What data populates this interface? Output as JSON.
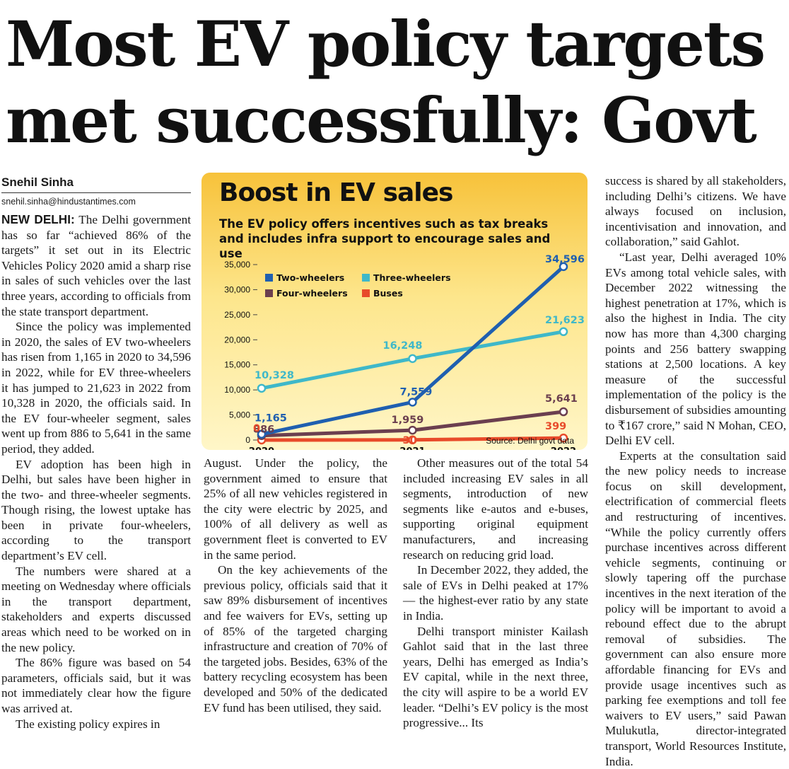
{
  "headline": "Most EV policy targets met successfully: Govt",
  "byline": "Snehil Sinha",
  "email": "snehil.sinha@hindustantimes.com",
  "dateline": "NEW DELHI:",
  "columns": {
    "col1": [
      "The Delhi government has so far “achieved 86% of the targets” it set out in its Electric Vehicles Policy 2020 amid a sharp rise in sales of such vehicles over the last three years, according to officials from the state transport department.",
      "Since the policy was implemented in 2020, the sales of EV two-wheelers has risen from 1,165 in 2020 to 34,596 in 2022, while for EV three-wheelers it has jumped to 21,623 in 2022 from 10,328 in 2020, the officials said. In the EV four-wheeler segment, sales went up from 886 to 5,641 in the same period, they added.",
      "EV adoption has been high in Delhi, but sales have been higher in the two- and three-wheeler segments. Though rising, the lowest uptake has been in private four-wheelers, according to the transport department’s EV cell.",
      "The numbers were shared at a meeting on Wednesday where officials in the transport department, stakeholders and experts discussed areas which need to be worked on in the new policy.",
      "The 86% figure was based on 54 parameters, officials said, but it was not immediately clear how the figure was arrived at.",
      "The existing policy expires in"
    ],
    "col2": [
      "August. Under the policy, the government aimed to ensure that 25% of all new vehicles registered in the city were electric by 2025, and 100% of all delivery as well as government fleet is converted to EV in the same period.",
      "On the key achievements of the previous policy, officials said that it saw 89% disbursement of incentives and fee waivers for EVs, setting up of 85% of the targeted charging infrastructure and creation of 70% of the targeted jobs. Besides, 63% of the battery recycling ecosystem has been developed and 50% of the dedicated EV fund has been utilised, they said."
    ],
    "col3": [
      "Other measures out of the total 54 included increasing EV sales in all segments, introduction of new segments like e-autos and e-buses, supporting original equipment manufacturers, and increasing research on reducing grid load.",
      "In December 2022, they added, the sale of EVs in Delhi peaked at 17% — the highest-ever ratio by any state in India.",
      "Delhi transport minister Kailash Gahlot said that in the last three years, Delhi has emerged as India’s EV capital, while in the next three, the city will aspire to be a world EV leader. “Delhi’s EV policy is the most progressive... Its"
    ],
    "col4": [
      "success is shared by all stakeholders, including Delhi’s citizens. We have always focused on inclusion, incentivisation and innovation, and collaboration,” said Gahlot.",
      "“Last year, Delhi averaged 10% EVs among total vehicle sales, with December 2022 witnessing the highest penetration at 17%, which is also the highest in India. The city now has more than 4,300 charging points and 256 battery swapping stations at 2,500 locations. A key measure of the successful implementation of the policy is the disbursement of subsidies amounting to ₹167 crore,” said N Mohan, CEO, Delhi EV cell.",
      "Experts at the consultation said the new policy needs to increase focus on skill development, electrification of commercial fleets and restructuring of incentives. “While the policy currently offers purchase incentives across different vehicle segments, continuing or slowly tapering off the purchase incentives in the next iteration of the policy will be important to avoid a rebound effect due to the abrupt removal of subsidies. The government can also ensure more affordable financing for EVs and provide usage incentives such as parking fee exemptions and toll fee waivers to EV users,” said Pawan Mulukutla, director-integrated transport, World Resources Institute, India."
    ]
  },
  "chart_data": {
    "type": "line",
    "title": "Boost in EV sales",
    "subtitle": "The EV policy offers incentives such as tax breaks and includes infra support to encourage sales and use",
    "source": "Source: Delhi govt data",
    "x": [
      "2020",
      "2021",
      "2022"
    ],
    "ylim": [
      0,
      35000
    ],
    "yticks": [
      "0",
      "5,000",
      "10,000",
      "15,000",
      "20,000",
      "25,000",
      "30,000",
      "35,000"
    ],
    "ytick_values": [
      0,
      5000,
      10000,
      15000,
      20000,
      25000,
      30000,
      35000
    ],
    "legend_position": "top-left",
    "series": [
      {
        "name": "Two-wheelers",
        "color": "#1f5fb0",
        "values": [
          1165,
          7559,
          34596
        ],
        "labels": [
          "1,165",
          "7,559",
          "34,596"
        ]
      },
      {
        "name": "Three-wheelers",
        "color": "#3fb8c9",
        "values": [
          10328,
          16248,
          21623
        ],
        "labels": [
          "10,328",
          "16,248",
          "21,623"
        ]
      },
      {
        "name": "Four-wheelers",
        "color": "#6b3f4f",
        "values": [
          886,
          1959,
          5641
        ],
        "labels": [
          "886",
          "1,959",
          "5,641"
        ]
      },
      {
        "name": "Buses",
        "color": "#e84b2a",
        "values": [
          0,
          30,
          399
        ],
        "labels": [
          "0",
          "30",
          "399"
        ]
      }
    ]
  }
}
